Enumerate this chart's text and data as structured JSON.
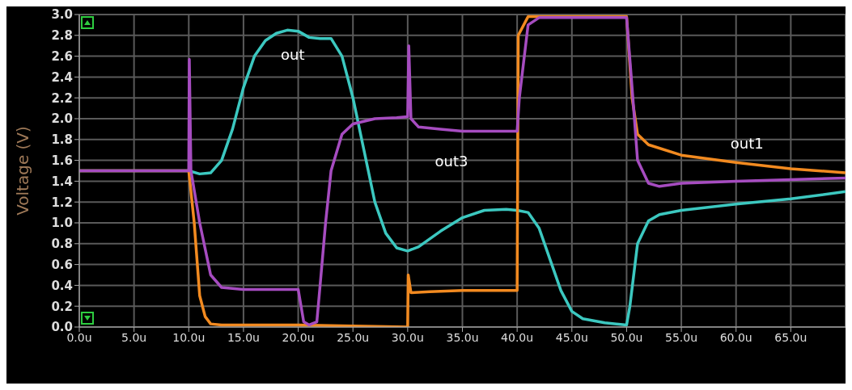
{
  "chart_data": {
    "type": "line",
    "ylabel": "Voltage (V)",
    "xlim": [
      0,
      70
    ],
    "xticks": [
      {
        "value": 0,
        "label": "0.0u"
      },
      {
        "value": 5,
        "label": "5.0u"
      },
      {
        "value": 10,
        "label": "10.0u"
      },
      {
        "value": 15,
        "label": "15.0u"
      },
      {
        "value": 20,
        "label": "20.0u"
      },
      {
        "value": 25,
        "label": "25.0u"
      },
      {
        "value": 30,
        "label": "30.0u"
      },
      {
        "value": 35,
        "label": "35.0u"
      },
      {
        "value": 40,
        "label": "40.0u"
      },
      {
        "value": 45,
        "label": "45.0u"
      },
      {
        "value": 50,
        "label": "50.0u"
      },
      {
        "value": 55,
        "label": "55.0u"
      },
      {
        "value": 60,
        "label": "60.0u"
      },
      {
        "value": 65,
        "label": "65.0u"
      }
    ],
    "ylim": [
      0,
      3
    ],
    "yticks": [
      {
        "value": 0,
        "label": "0.0"
      },
      {
        "value": 0.2,
        "label": "0.2"
      },
      {
        "value": 0.4,
        "label": "0.4"
      },
      {
        "value": 0.6,
        "label": "0.6"
      },
      {
        "value": 0.8,
        "label": "0.8"
      },
      {
        "value": 1,
        "label": "1.0"
      },
      {
        "value": 1.2,
        "label": "1.2"
      },
      {
        "value": 1.4,
        "label": "1.4"
      },
      {
        "value": 1.6,
        "label": "1.6"
      },
      {
        "value": 1.8,
        "label": "1.8"
      },
      {
        "value": 2,
        "label": "2.0"
      },
      {
        "value": 2.2,
        "label": "2.2"
      },
      {
        "value": 2.4,
        "label": "2.4"
      },
      {
        "value": 2.6,
        "label": "2.6"
      },
      {
        "value": 2.8,
        "label": "2.8"
      },
      {
        "value": 3,
        "label": "3.0"
      }
    ],
    "grid": true,
    "legend": false,
    "marker": "none",
    "line_style": "solid",
    "series": [
      {
        "name": "out",
        "color": "#3cc8c0",
        "x": [
          0,
          10,
          11,
          12,
          13,
          14,
          15,
          16,
          17,
          18,
          19,
          20,
          21,
          22,
          23,
          24,
          25,
          26,
          27,
          28,
          29,
          30,
          31,
          33,
          35,
          37,
          39,
          40,
          41,
          42,
          43,
          44,
          45,
          46,
          48,
          50,
          50.3,
          51,
          52,
          53,
          55,
          60,
          65,
          70
        ],
        "values": [
          1.5,
          1.5,
          1.47,
          1.48,
          1.6,
          1.9,
          2.3,
          2.6,
          2.75,
          2.82,
          2.85,
          2.84,
          2.78,
          2.77,
          2.77,
          2.6,
          2.2,
          1.7,
          1.2,
          0.9,
          0.76,
          0.73,
          0.77,
          0.92,
          1.05,
          1.12,
          1.13,
          1.12,
          1.1,
          0.95,
          0.65,
          0.35,
          0.15,
          0.08,
          0.04,
          0.02,
          0.2,
          0.8,
          1.02,
          1.08,
          1.12,
          1.18,
          1.23,
          1.3
        ]
      },
      {
        "name": "out1",
        "color": "#f28a20",
        "x": [
          0,
          10,
          10.5,
          11,
          11.5,
          12,
          13,
          20,
          30,
          30.05,
          30.3,
          32,
          35,
          40,
          40.1,
          41,
          50,
          50.5,
          51,
          52,
          55,
          60,
          65,
          70
        ],
        "values": [
          1.5,
          1.5,
          1.0,
          0.3,
          0.1,
          0.03,
          0.02,
          0.02,
          0.0,
          0.5,
          0.33,
          0.34,
          0.35,
          0.35,
          2.8,
          2.98,
          2.98,
          2.2,
          1.85,
          1.75,
          1.65,
          1.58,
          1.52,
          1.48
        ]
      },
      {
        "name": "out3",
        "color": "#a64cc0",
        "x": [
          0,
          10,
          10.05,
          10.2,
          11,
          12,
          13,
          15,
          20,
          20.5,
          21,
          21.7,
          22,
          22.5,
          23,
          24,
          25,
          27,
          29,
          30,
          30.1,
          30.3,
          31,
          33,
          35,
          40,
          40.2,
          41,
          42,
          50,
          50.5,
          51,
          52,
          53,
          55,
          60,
          70
        ],
        "values": [
          1.5,
          1.5,
          2.57,
          1.5,
          1.0,
          0.5,
          0.38,
          0.36,
          0.36,
          0.05,
          0.02,
          0.05,
          0.4,
          1.0,
          1.5,
          1.85,
          1.95,
          2.0,
          2.01,
          2.02,
          2.7,
          2.0,
          1.92,
          1.9,
          1.88,
          1.88,
          2.2,
          2.9,
          2.97,
          2.97,
          2.3,
          1.6,
          1.38,
          1.35,
          1.38,
          1.4,
          1.43
        ]
      }
    ]
  }
}
